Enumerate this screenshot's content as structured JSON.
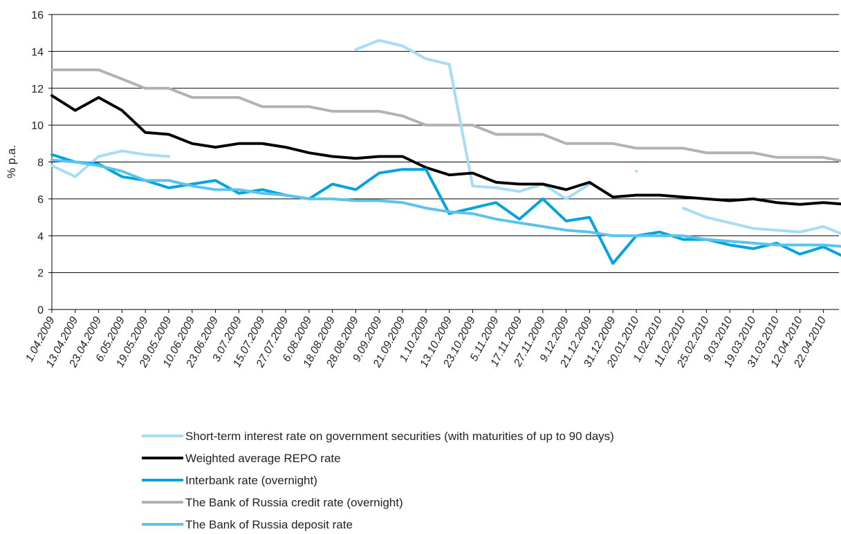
{
  "chart_data": {
    "type": "line",
    "y_label": "% p.a.",
    "categories": [
      "1.04.2009",
      "13.04.2009",
      "23.04.2009",
      "6.05.2009",
      "19.05.2009",
      "29.05.2009",
      "10.06.2009",
      "23.06.2009",
      "3.07.2009",
      "15.07.2009",
      "27.07.2009",
      "6.08.2009",
      "18.08.2009",
      "28.08.2009",
      "9.09.2009",
      "21.09.2009",
      "1.10.2009",
      "13.10.2009",
      "23.10.2009",
      "5.11.2009",
      "17.11.2009",
      "27.11.2009",
      "9.12.2009",
      "21.12.2009",
      "31.12.2009",
      "20.01.2010",
      "1.02.2010",
      "11.02.2010",
      "25.02.2010",
      "9.03.2010",
      "19.03.2010",
      "31.03.2010",
      "12.04.2010",
      "22.04.2010",
      null
    ],
    "series": [
      {
        "name": "The Bank of Russia credit rate (overnight)",
        "color": "#b2b2b2",
        "values": [
          13,
          13,
          13,
          12.5,
          12,
          12,
          11.5,
          11.5,
          11.5,
          11,
          11,
          11,
          10.75,
          10.75,
          10.75,
          10.5,
          10,
          10,
          10,
          9.5,
          9.5,
          9.5,
          9,
          9,
          9,
          8.75,
          8.75,
          8.75,
          8.5,
          8.5,
          8.5,
          8.25,
          8.25,
          8.25,
          8
        ]
      },
      {
        "name": "Short-term interest rate on government securities (with maturities of up to 90 days)",
        "color": "#a8dcf2",
        "values": [
          7.8,
          7.2,
          8.3,
          8.6,
          8.4,
          8.3,
          null,
          null,
          null,
          null,
          null,
          null,
          null,
          14.1,
          14.6,
          14.3,
          13.6,
          13.3,
          6.7,
          6.6,
          6.4,
          6.8,
          6.0,
          6.8,
          null,
          7.5,
          null,
          5.5,
          5.0,
          4.7,
          4.4,
          4.3,
          4.2,
          4.5,
          4.0
        ]
      },
      {
        "name": "Weighted average REPO rate",
        "color": "#000000",
        "values": [
          11.6,
          10.8,
          11.5,
          10.8,
          9.6,
          9.5,
          9.0,
          8.8,
          9.0,
          9.0,
          8.8,
          8.5,
          8.3,
          8.2,
          8.3,
          8.3,
          7.7,
          7.3,
          7.4,
          6.9,
          6.8,
          6.8,
          6.5,
          6.9,
          6.1,
          6.2,
          6.2,
          6.1,
          6.0,
          5.9,
          6.0,
          5.8,
          5.7,
          5.8,
          5.7
        ]
      },
      {
        "name": "Interbank rate (overnight)",
        "color": "#00a3e0",
        "values": [
          8.4,
          8.0,
          7.9,
          7.2,
          7.0,
          6.6,
          6.8,
          7.0,
          6.3,
          6.5,
          6.2,
          6.0,
          6.8,
          6.5,
          7.4,
          7.6,
          7.6,
          5.2,
          5.5,
          5.8,
          4.9,
          6.0,
          4.8,
          5.0,
          2.5,
          4.0,
          4.2,
          3.8,
          3.8,
          3.5,
          3.3,
          3.6,
          3.0,
          3.4,
          2.8
        ]
      },
      {
        "name": "The Bank of Russia deposit rate",
        "color": "#5bc4ea",
        "values": [
          8.1,
          8.0,
          7.8,
          7.5,
          7.0,
          7.0,
          6.7,
          6.5,
          6.5,
          6.3,
          6.2,
          6.0,
          6.0,
          5.9,
          5.9,
          5.8,
          5.5,
          5.3,
          5.2,
          4.9,
          4.7,
          4.5,
          4.3,
          4.2,
          4.0,
          4.0,
          4.0,
          4.0,
          3.8,
          3.7,
          3.6,
          3.5,
          3.5,
          3.5,
          3.4
        ]
      }
    ],
    "legend_order": [
      1,
      2,
      3,
      0,
      4
    ],
    "ylim": [
      0,
      16
    ],
    "yticks": [
      0,
      2,
      4,
      6,
      8,
      10,
      12,
      14,
      16
    ],
    "grid": true
  }
}
